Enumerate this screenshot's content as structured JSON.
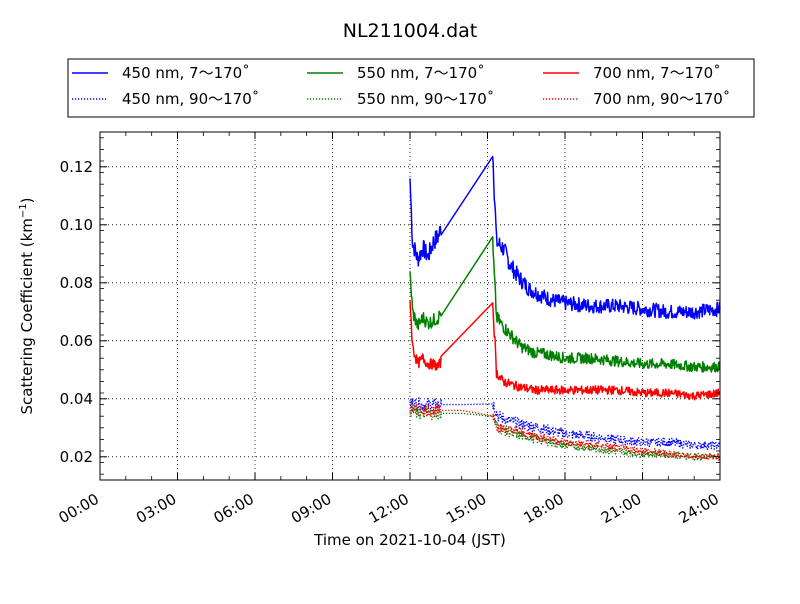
{
  "chart_data": {
    "type": "line",
    "title": "NL211004.dat",
    "xlabel": "Time on 2021-10-04 (JST)",
    "ylabel": "Scattering Coefficient (km",
    "ylabel_sup": "−1",
    "ylabel_end": ")",
    "x_unit": "hour",
    "xlim": [
      0,
      24
    ],
    "ylim": [
      0.012,
      0.132
    ],
    "xticks": [
      0,
      3,
      6,
      9,
      12,
      15,
      18,
      21,
      24
    ],
    "xtick_labels": [
      "00:00",
      "03:00",
      "06:00",
      "09:00",
      "12:00",
      "15:00",
      "18:00",
      "21:00",
      "24:00"
    ],
    "yticks": [
      0.02,
      0.04,
      0.06,
      0.08,
      0.1,
      0.12
    ],
    "ytick_labels": [
      "0.02",
      "0.04",
      "0.06",
      "0.08",
      "0.10",
      "0.12"
    ],
    "grid": true,
    "legend_position": "top",
    "series": [
      {
        "name": "450 nm, 7～170˚",
        "color": "#0000ff",
        "style": "solid",
        "points": [
          [
            12.0,
            0.116
          ],
          [
            12.1,
            0.094
          ],
          [
            12.3,
            0.088
          ],
          [
            12.5,
            0.092
          ],
          [
            12.7,
            0.089
          ],
          [
            12.9,
            0.094
          ],
          [
            13.1,
            0.096
          ],
          [
            13.2,
            0.099
          ],
          [
            15.2,
            0.126
          ],
          [
            15.35,
            0.094
          ],
          [
            15.6,
            0.092
          ],
          [
            15.9,
            0.086
          ],
          [
            16.2,
            0.082
          ],
          [
            16.6,
            0.078
          ],
          [
            17.0,
            0.076
          ],
          [
            17.5,
            0.074
          ],
          [
            18.0,
            0.073
          ],
          [
            19.0,
            0.072
          ],
          [
            20.0,
            0.072
          ],
          [
            21.0,
            0.071
          ],
          [
            22.0,
            0.07
          ],
          [
            23.0,
            0.07
          ],
          [
            24.0,
            0.071
          ]
        ]
      },
      {
        "name": "450 nm, 90～170˚",
        "color": "#0000ff",
        "style": "dotted",
        "points": [
          [
            12.0,
            0.039
          ],
          [
            12.3,
            0.038
          ],
          [
            12.6,
            0.038
          ],
          [
            13.0,
            0.038
          ],
          [
            14.0,
            0.038
          ],
          [
            15.2,
            0.039
          ],
          [
            15.4,
            0.034
          ],
          [
            16.0,
            0.032
          ],
          [
            17.0,
            0.03
          ],
          [
            18.0,
            0.028
          ],
          [
            19.0,
            0.027
          ],
          [
            20.0,
            0.026
          ],
          [
            21.0,
            0.025
          ],
          [
            22.0,
            0.025
          ],
          [
            23.0,
            0.024
          ],
          [
            24.0,
            0.024
          ]
        ]
      },
      {
        "name": "550 nm, 7～170˚",
        "color": "#008000",
        "style": "solid",
        "points": [
          [
            12.0,
            0.084
          ],
          [
            12.1,
            0.07
          ],
          [
            12.3,
            0.065
          ],
          [
            12.5,
            0.068
          ],
          [
            12.7,
            0.066
          ],
          [
            12.9,
            0.067
          ],
          [
            13.1,
            0.068
          ],
          [
            13.2,
            0.07
          ],
          [
            15.2,
            0.093
          ],
          [
            15.35,
            0.068
          ],
          [
            15.6,
            0.065
          ],
          [
            15.9,
            0.062
          ],
          [
            16.3,
            0.058
          ],
          [
            16.8,
            0.056
          ],
          [
            17.5,
            0.055
          ],
          [
            18.0,
            0.054
          ],
          [
            19.0,
            0.054
          ],
          [
            20.0,
            0.053
          ],
          [
            21.0,
            0.052
          ],
          [
            22.0,
            0.052
          ],
          [
            23.0,
            0.051
          ],
          [
            24.0,
            0.051
          ]
        ]
      },
      {
        "name": "550 nm, 90～170˚",
        "color": "#008000",
        "style": "dotted",
        "points": [
          [
            12.0,
            0.036
          ],
          [
            12.3,
            0.035
          ],
          [
            12.6,
            0.035
          ],
          [
            13.0,
            0.035
          ],
          [
            14.0,
            0.035
          ],
          [
            15.2,
            0.034
          ],
          [
            15.4,
            0.03
          ],
          [
            16.0,
            0.028
          ],
          [
            17.0,
            0.026
          ],
          [
            18.0,
            0.024
          ],
          [
            19.0,
            0.023
          ],
          [
            20.0,
            0.022
          ],
          [
            21.0,
            0.021
          ],
          [
            22.0,
            0.021
          ],
          [
            23.0,
            0.02
          ],
          [
            24.0,
            0.02
          ]
        ]
      },
      {
        "name": "700 nm, 7～170˚",
        "color": "#ff0000",
        "style": "solid",
        "points": [
          [
            12.0,
            0.074
          ],
          [
            12.1,
            0.058
          ],
          [
            12.3,
            0.052
          ],
          [
            12.5,
            0.054
          ],
          [
            12.7,
            0.052
          ],
          [
            12.9,
            0.052
          ],
          [
            13.1,
            0.051
          ],
          [
            13.2,
            0.053
          ],
          [
            15.2,
            0.074
          ],
          [
            15.35,
            0.049
          ],
          [
            15.6,
            0.046
          ],
          [
            15.9,
            0.045
          ],
          [
            16.3,
            0.044
          ],
          [
            16.8,
            0.043
          ],
          [
            17.5,
            0.043
          ],
          [
            18.0,
            0.043
          ],
          [
            19.0,
            0.043
          ],
          [
            20.0,
            0.043
          ],
          [
            21.0,
            0.042
          ],
          [
            22.0,
            0.042
          ],
          [
            23.0,
            0.041
          ],
          [
            24.0,
            0.042
          ]
        ]
      },
      {
        "name": "700 nm, 90～170˚",
        "color": "#ff0000",
        "style": "dotted",
        "points": [
          [
            12.0,
            0.037
          ],
          [
            12.3,
            0.036
          ],
          [
            12.6,
            0.036
          ],
          [
            13.0,
            0.036
          ],
          [
            14.0,
            0.036
          ],
          [
            15.2,
            0.035
          ],
          [
            15.4,
            0.03
          ],
          [
            16.0,
            0.029
          ],
          [
            17.0,
            0.027
          ],
          [
            18.0,
            0.025
          ],
          [
            19.0,
            0.024
          ],
          [
            20.0,
            0.023
          ],
          [
            21.0,
            0.022
          ],
          [
            22.0,
            0.021
          ],
          [
            23.0,
            0.02
          ],
          [
            24.0,
            0.02
          ]
        ]
      }
    ]
  }
}
